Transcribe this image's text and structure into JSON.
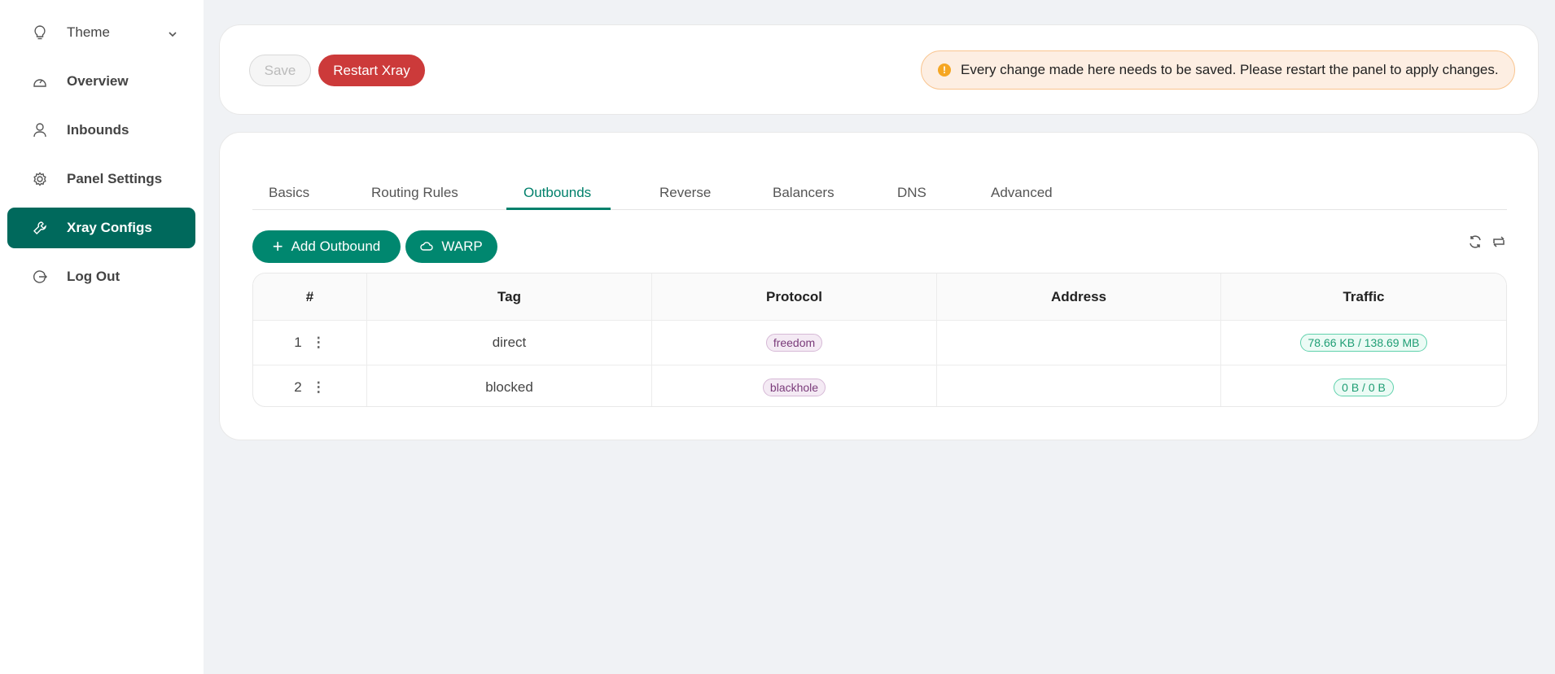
{
  "sidebar": {
    "items": [
      {
        "label": "Theme",
        "icon": "lightbulb-icon"
      },
      {
        "label": "Overview",
        "icon": "dashboard-icon"
      },
      {
        "label": "Inbounds",
        "icon": "user-icon"
      },
      {
        "label": "Panel Settings",
        "icon": "gear-icon"
      },
      {
        "label": "Xray Configs",
        "icon": "wrench-icon",
        "active": true
      },
      {
        "label": "Log Out",
        "icon": "logout-icon"
      }
    ]
  },
  "toolbar": {
    "save_label": "Save",
    "restart_label": "Restart Xray"
  },
  "alert": {
    "text": "Every change made here needs to be saved. Please restart the panel to apply changes."
  },
  "tabs": [
    "Basics",
    "Routing Rules",
    "Outbounds",
    "Reverse",
    "Balancers",
    "DNS",
    "Advanced"
  ],
  "active_tab": "Outbounds",
  "actions": {
    "add_label": "Add Outbound",
    "warp_label": "WARP"
  },
  "table": {
    "headers": [
      "#",
      "Tag",
      "Protocol",
      "Address",
      "Traffic"
    ],
    "rows": [
      {
        "num": "1",
        "tag": "direct",
        "protocol": "freedom",
        "address": "",
        "traffic": "78.66 KB / 138.69 MB"
      },
      {
        "num": "2",
        "tag": "blocked",
        "protocol": "blackhole",
        "address": "",
        "traffic": "0 B / 0 B"
      }
    ]
  },
  "colors": {
    "primary": "#00695c",
    "accent": "#00876f",
    "danger": "#cc3a3a",
    "warning": "#f5a623"
  }
}
